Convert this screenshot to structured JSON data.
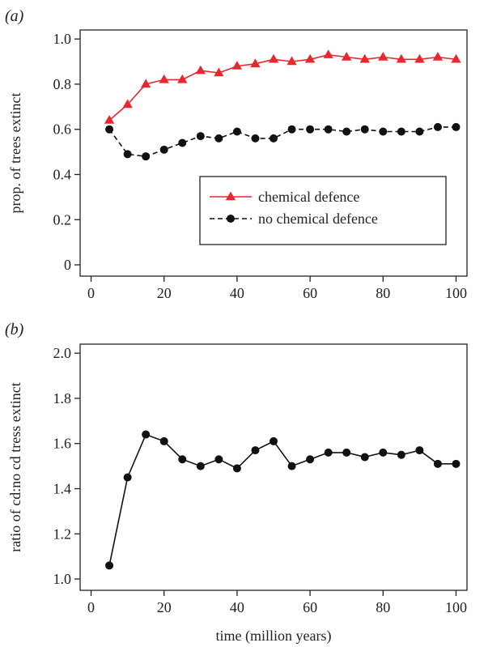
{
  "chart_data": [
    {
      "type": "line",
      "panel_label": "(a)",
      "xlabel": "",
      "ylabel": "prop. of trees extinct",
      "xlim": [
        -3,
        103
      ],
      "ylim": [
        -0.05,
        1.04
      ],
      "xticks": [
        0,
        20,
        40,
        60,
        80,
        100
      ],
      "xtick_labels": [
        "0",
        "20",
        "40",
        "60",
        "80",
        "100"
      ],
      "yticks": [
        0,
        0.2,
        0.4,
        0.6,
        0.8,
        1.0
      ],
      "ytick_labels": [
        "0",
        "0.2",
        "0.4",
        "0.6",
        "0.8",
        "1.0"
      ],
      "grid": false,
      "legend_position": "bottom-right",
      "x": [
        5,
        10,
        15,
        20,
        25,
        30,
        35,
        40,
        45,
        50,
        55,
        60,
        65,
        70,
        75,
        80,
        85,
        90,
        95,
        100
      ],
      "series": [
        {
          "name": "chemical defence",
          "color": "#e8282e",
          "marker": "triangle",
          "line_style": "solid",
          "values": [
            0.64,
            0.71,
            0.8,
            0.82,
            0.82,
            0.86,
            0.85,
            0.88,
            0.89,
            0.91,
            0.9,
            0.91,
            0.93,
            0.92,
            0.91,
            0.92,
            0.91,
            0.91,
            0.92,
            0.91
          ]
        },
        {
          "name": "no chemical defence",
          "color": "#111111",
          "marker": "circle",
          "line_style": "dashed",
          "values": [
            0.6,
            0.49,
            0.48,
            0.51,
            0.54,
            0.57,
            0.56,
            0.59,
            0.56,
            0.56,
            0.6,
            0.6,
            0.6,
            0.59,
            0.6,
            0.59,
            0.59,
            0.59,
            0.61,
            0.61
          ]
        }
      ]
    },
    {
      "type": "line",
      "panel_label": "(b)",
      "xlabel": "time (million years)",
      "ylabel": "ratio of cd:no cd tress extinct",
      "xlim": [
        -3,
        103
      ],
      "ylim": [
        0.95,
        2.04
      ],
      "xticks": [
        0,
        20,
        40,
        60,
        80,
        100
      ],
      "xtick_labels": [
        "0",
        "20",
        "40",
        "60",
        "80",
        "100"
      ],
      "yticks": [
        1.0,
        1.2,
        1.4,
        1.6,
        1.8,
        2.0
      ],
      "ytick_labels": [
        "1.0",
        "1.2",
        "1.4",
        "1.6",
        "1.8",
        "2.0"
      ],
      "grid": false,
      "x": [
        5,
        10,
        15,
        20,
        25,
        30,
        35,
        40,
        45,
        50,
        55,
        60,
        65,
        70,
        75,
        80,
        85,
        90,
        95,
        100
      ],
      "series": [
        {
          "color": "#111111",
          "marker": "circle",
          "line_style": "solid",
          "values": [
            1.06,
            1.45,
            1.64,
            1.61,
            1.53,
            1.5,
            1.53,
            1.49,
            1.57,
            1.61,
            1.5,
            1.53,
            1.56,
            1.56,
            1.54,
            1.56,
            1.55,
            1.57,
            1.51,
            1.51
          ]
        }
      ]
    }
  ]
}
